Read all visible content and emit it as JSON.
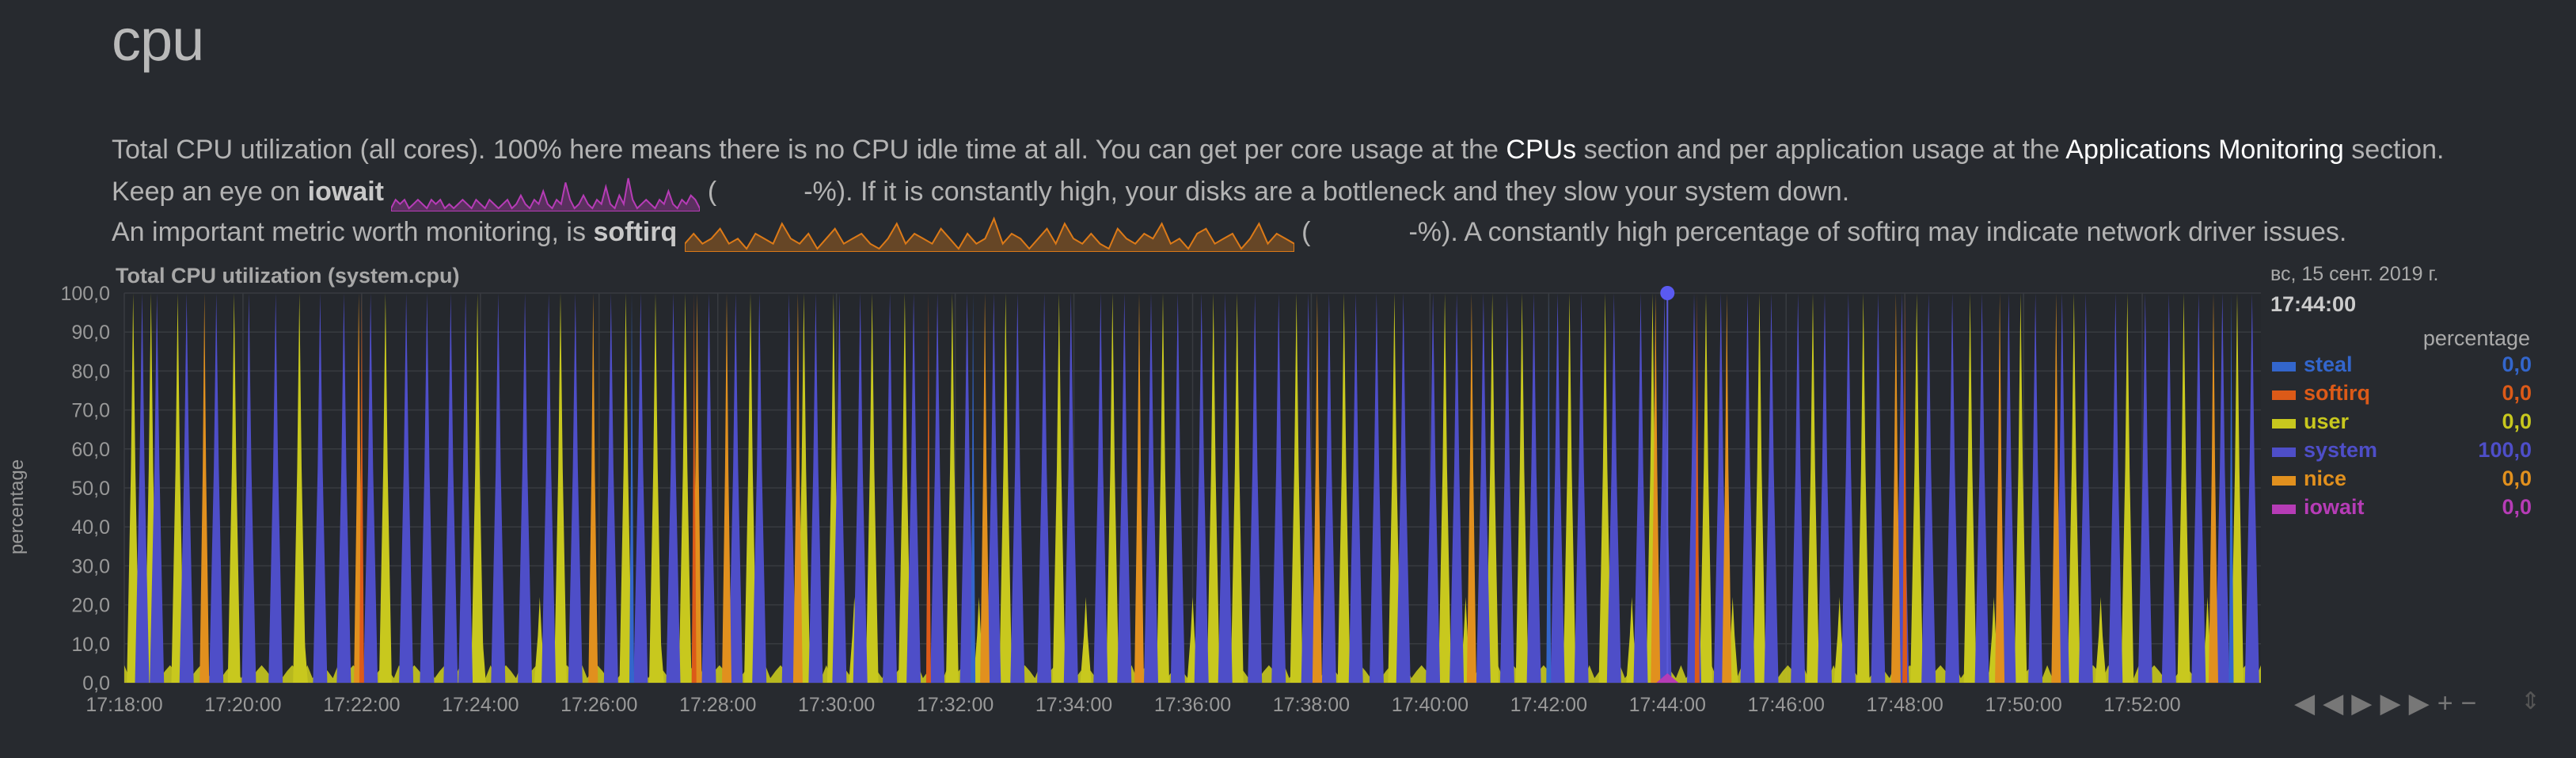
{
  "section_title": "cpu",
  "description": {
    "line1_a": "Total CPU utilization (all cores). 100% here means there is no CPU idle time at all. You can get per core usage at the ",
    "line1_link1": "CPUs",
    "line1_b": " section and per application usage at the ",
    "line1_link2": "Applications Monitoring",
    "line1_c": " section.",
    "line2_a": "Keep an eye on ",
    "line2_bold": "iowait",
    "line2_open": "(",
    "line2_b": "-%). If it is constantly high, your disks are a bottleneck and they slow your system down.",
    "line3_a": "An important metric worth monitoring, is ",
    "line3_bold": "softirq",
    "line3_open": "(",
    "line3_b": "-%). A constantly high percentage of softirq may indicate network driver issues."
  },
  "sparklines": {
    "iowait": [
      0,
      2,
      1,
      2,
      0,
      1,
      2,
      1,
      0,
      2,
      1,
      2,
      0,
      1,
      0,
      1,
      2,
      1,
      0,
      2,
      1,
      0,
      2,
      1,
      0,
      1,
      2,
      0,
      1,
      3,
      1,
      0,
      2,
      1,
      4,
      1,
      0,
      2,
      1,
      6,
      2,
      0,
      1,
      3,
      1,
      0,
      2,
      1,
      5,
      1,
      0,
      3,
      1,
      7,
      2,
      0,
      1,
      2,
      1,
      0,
      2,
      1,
      4,
      1,
      0,
      2,
      1,
      3,
      2,
      0
    ],
    "softirq": [
      1,
      3,
      1,
      2,
      4,
      1,
      2,
      0,
      3,
      2,
      1,
      5,
      2,
      1,
      3,
      0,
      2,
      4,
      1,
      2,
      3,
      1,
      0,
      2,
      5,
      1,
      3,
      2,
      1,
      4,
      2,
      0,
      3,
      1,
      2,
      6,
      1,
      3,
      2,
      0,
      2,
      4,
      1,
      5,
      2,
      1,
      3,
      1,
      0,
      4,
      2,
      1,
      3,
      2,
      5,
      1,
      2,
      0,
      3,
      4,
      1,
      2,
      3,
      0,
      2,
      5,
      1,
      3,
      2,
      1
    ]
  },
  "chart_data": {
    "type": "area",
    "title": "Total CPU utilization (system.cpu)",
    "ylabel": "percentage",
    "xlabel": "",
    "ylim": [
      0,
      100
    ],
    "yticks": [
      "100,0",
      "90,0",
      "80,0",
      "70,0",
      "60,0",
      "50,0",
      "40,0",
      "30,0",
      "20,0",
      "10,0",
      "0,0"
    ],
    "x_range_minutes": [
      1078,
      1114
    ],
    "xticks": [
      {
        "t": 1078,
        "label": "17:18:00"
      },
      {
        "t": 1080,
        "label": "17:20:00"
      },
      {
        "t": 1082,
        "label": "17:22:00"
      },
      {
        "t": 1084,
        "label": "17:24:00"
      },
      {
        "t": 1086,
        "label": "17:26:00"
      },
      {
        "t": 1088,
        "label": "17:28:00"
      },
      {
        "t": 1090,
        "label": "17:30:00"
      },
      {
        "t": 1092,
        "label": "17:32:00"
      },
      {
        "t": 1094,
        "label": "17:34:00"
      },
      {
        "t": 1096,
        "label": "17:36:00"
      },
      {
        "t": 1098,
        "label": "17:38:00"
      },
      {
        "t": 1100,
        "label": "17:40:00"
      },
      {
        "t": 1102,
        "label": "17:42:00"
      },
      {
        "t": 1104,
        "label": "17:44:00"
      },
      {
        "t": 1106,
        "label": "17:46:00"
      },
      {
        "t": 1108,
        "label": "17:48:00"
      },
      {
        "t": 1110,
        "label": "17:50:00"
      },
      {
        "t": 1112,
        "label": "17:52:00"
      }
    ],
    "series": [
      {
        "name": "steal",
        "color": "#3366cc",
        "value_label": "0,0"
      },
      {
        "name": "softirq",
        "color": "#dc5a18",
        "value_label": "0,0"
      },
      {
        "name": "user",
        "color": "#c8c81e",
        "value_label": "0,0"
      },
      {
        "name": "system",
        "color": "#4e4ec8",
        "value_label": "100,0"
      },
      {
        "name": "nice",
        "color": "#e1901e",
        "value_label": "0,0"
      },
      {
        "name": "iowait",
        "color": "#b63cb6",
        "value_label": "0,0"
      }
    ],
    "spikes_system": [
      1078.3,
      1078.55,
      1079.05,
      1079.55,
      1080.1,
      1080.55,
      1081.3,
      1081.7,
      1082.15,
      1082.75,
      1083.1,
      1083.5,
      1083.75,
      1084.3,
      1084.75,
      1085.15,
      1085.6,
      1086.2,
      1086.7,
      1087.25,
      1087.85,
      1088.3,
      1088.7,
      1089.2,
      1089.65,
      1090.05,
      1090.4,
      1090.9,
      1091.3,
      1091.7,
      1092.2,
      1092.65,
      1093.05,
      1093.5,
      1093.95,
      1094.45,
      1094.85,
      1095.3,
      1095.75,
      1096.15,
      1096.55,
      1097.05,
      1097.45,
      1097.95,
      1098.3,
      1098.75,
      1099.1,
      1099.55,
      1100.05,
      1100.45,
      1100.9,
      1101.3,
      1101.75,
      1102.15,
      1102.55,
      1103.1,
      1103.55,
      1103.95,
      1104.45,
      1104.9,
      1105.35,
      1105.75,
      1106.2,
      1106.65,
      1107.05,
      1107.55,
      1107.95,
      1108.4,
      1108.8,
      1109.3,
      1109.75,
      1110.2,
      1110.65,
      1111.05,
      1111.55,
      1112.05,
      1112.45,
      1112.95,
      1113.35,
      1113.85
    ],
    "spikes_user": [
      1078.15,
      1078.45,
      1078.9,
      1079.85,
      1080.95,
      1082.4,
      1083.95,
      1085.35,
      1086.45,
      1086.95,
      1087.45,
      1088.55,
      1089.45,
      1089.95,
      1090.6,
      1091.15,
      1091.95,
      1092.85,
      1093.75,
      1094.65,
      1095.5,
      1096.35,
      1096.75,
      1097.75,
      1098.55,
      1099.4,
      1100.25,
      1101.05,
      1101.55,
      1102.35,
      1102.95,
      1103.75,
      1104.65,
      1105.55,
      1106.45,
      1107.3,
      1108.2,
      1109.1,
      1109.95,
      1110.85,
      1111.75,
      1112.7,
      1113.6
    ],
    "spikes_user_small": [
      1081.0,
      1084.0,
      1085.0,
      1087.0,
      1090.3,
      1092.4,
      1094.2,
      1096.0,
      1098.0,
      1100.6,
      1103.4,
      1105.1,
      1106.9,
      1109.5,
      1111.3,
      1113.1
    ],
    "spikes_nice": [
      1079.35,
      1081.95,
      1085.9,
      1087.65,
      1088.15,
      1089.35,
      1092.5,
      1095.1,
      1098.1,
      1100.7,
      1103.8,
      1105.0,
      1107.85,
      1109.6,
      1110.55,
      1113.2
    ],
    "spikes_softirq": [
      1082.0,
      1087.6,
      1091.55,
      1104.5,
      1108.0
    ],
    "spikes_steal": [
      1086.55,
      1092.3,
      1102.0,
      1113.5
    ],
    "cursor_point": {
      "t": 1104.0,
      "value": 100
    }
  },
  "legend": {
    "date": "вс, 15 сент. 2019 г.",
    "time": "17:44:00",
    "units": "percentage"
  },
  "colors": {
    "background": "#272a2f",
    "grid": "#383b40",
    "text": "#aaaaaa"
  }
}
